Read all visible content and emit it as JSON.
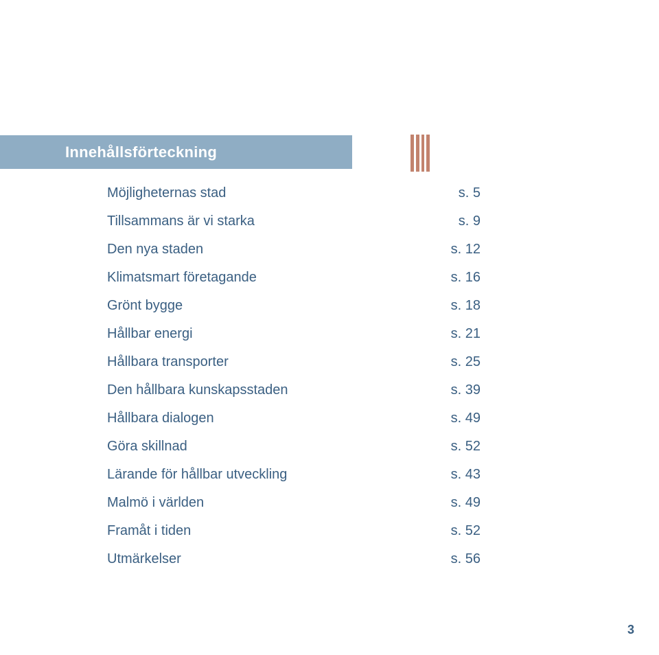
{
  "title": "Innehållsförteckning",
  "page_number": "3",
  "colors": {
    "band_bg": "#8fadc4",
    "band_text": "#ffffff",
    "accent_bar": "#c2836e",
    "body_text": "#3a5f82",
    "page_bg": "#ffffff"
  },
  "typography": {
    "title_fontsize": 22,
    "row_fontsize": 20,
    "pagenum_fontsize": 18
  },
  "toc": [
    {
      "label": "Möjligheternas stad",
      "page": "s. 5"
    },
    {
      "label": "Tillsammans är vi starka",
      "page": "s. 9"
    },
    {
      "label": "Den nya staden",
      "page": "s. 12"
    },
    {
      "label": "Klimatsmart företagande",
      "page": "s. 16"
    },
    {
      "label": "Grönt bygge",
      "page": "s. 18"
    },
    {
      "label": "Hållbar energi",
      "page": "s. 21"
    },
    {
      "label": "Hållbara transporter",
      "page": "s. 25"
    },
    {
      "label": "Den hållbara kunskapsstaden",
      "page": "s. 39"
    },
    {
      "label": "Hållbara dialogen",
      "page": "s. 49"
    },
    {
      "label": "Göra skillnad",
      "page": "s. 52"
    },
    {
      "label": "Lärande för hållbar utveckling",
      "page": "s. 43"
    },
    {
      "label": "Malmö i världen",
      "page": "s. 49"
    },
    {
      "label": "Framåt i tiden",
      "page": "s. 52"
    },
    {
      "label": "Utmärkelser",
      "page": "s. 56"
    }
  ]
}
